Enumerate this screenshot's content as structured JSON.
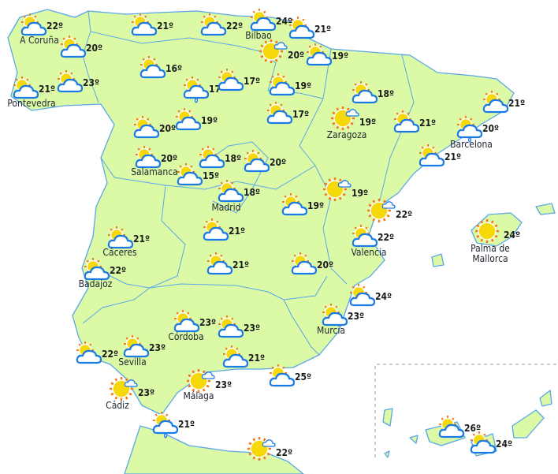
{
  "colors": {
    "land": "#dcfaa6",
    "border": "#5aa6e8",
    "sea": "#ffffff",
    "sun": "#f5d90a",
    "sun_rays": "#f07a1a",
    "cloud_stroke": "#1a7ae6"
  },
  "markers": [
    {
      "temp": "22º",
      "icon": "partly-cloudy-icon",
      "city": "A Coruña"
    },
    {
      "temp": "20º",
      "icon": "partly-cloudy-icon",
      "city": ""
    },
    {
      "temp": "21º",
      "icon": "partly-cloudy-icon",
      "city": "Pontevedra"
    },
    {
      "temp": "23º",
      "icon": "partly-cloudy-icon",
      "city": ""
    },
    {
      "temp": "21º",
      "icon": "partly-cloudy-icon",
      "city": ""
    },
    {
      "temp": "22º",
      "icon": "partly-cloudy-icon",
      "city": ""
    },
    {
      "temp": "24º",
      "icon": "partly-cloudy-icon",
      "city": "Bilbao"
    },
    {
      "temp": "21º",
      "icon": "partly-cloudy-icon",
      "city": ""
    },
    {
      "temp": "20º",
      "icon": "sunny-small-cloud-icon",
      "city": ""
    },
    {
      "temp": "19º",
      "icon": "partly-cloudy-icon",
      "city": ""
    },
    {
      "temp": "16º",
      "icon": "partly-cloudy-icon",
      "city": ""
    },
    {
      "temp": "17º",
      "icon": "cloud-drizzle-icon",
      "city": ""
    },
    {
      "temp": "17º",
      "icon": "partly-cloudy-icon",
      "city": ""
    },
    {
      "temp": "19º",
      "icon": "partly-cloudy-icon",
      "city": ""
    },
    {
      "temp": "17º",
      "icon": "partly-cloudy-icon",
      "city": ""
    },
    {
      "temp": "18º",
      "icon": "partly-cloudy-icon",
      "city": ""
    },
    {
      "temp": "19º",
      "icon": "sunny-small-cloud-icon",
      "city": "Zaragoza"
    },
    {
      "temp": "21º",
      "icon": "partly-cloudy-icon",
      "city": ""
    },
    {
      "temp": "20º",
      "icon": "cloud-drizzle-icon",
      "city": "Barcelona"
    },
    {
      "temp": "21º",
      "icon": "partly-cloudy-icon",
      "city": ""
    },
    {
      "temp": "21º",
      "icon": "partly-cloudy-icon",
      "city": ""
    },
    {
      "temp": "20º",
      "icon": "partly-cloudy-icon",
      "city": ""
    },
    {
      "temp": "19º",
      "icon": "partly-cloudy-icon",
      "city": ""
    },
    {
      "temp": "20º",
      "icon": "partly-cloudy-icon",
      "city": "Salamanca"
    },
    {
      "temp": "15º",
      "icon": "partly-cloudy-icon",
      "city": ""
    },
    {
      "temp": "18º",
      "icon": "partly-cloudy-icon",
      "city": ""
    },
    {
      "temp": "20º",
      "icon": "partly-cloudy-icon",
      "city": ""
    },
    {
      "temp": "18º",
      "icon": "partly-cloudy-icon",
      "city": "Madrid"
    },
    {
      "temp": "19º",
      "icon": "partly-cloudy-icon",
      "city": ""
    },
    {
      "temp": "19º",
      "icon": "sunny-small-cloud-icon",
      "city": ""
    },
    {
      "temp": "22º",
      "icon": "sunny-small-cloud-icon",
      "city": ""
    },
    {
      "temp": "22º",
      "icon": "partly-cloudy-icon",
      "city": "Valencia"
    },
    {
      "temp": "24º",
      "icon": "sunny-icon",
      "city": "Palma de Mallorca"
    },
    {
      "temp": "21º",
      "icon": "partly-cloudy-icon",
      "city": "Cáceres"
    },
    {
      "temp": "22º",
      "icon": "partly-cloudy-icon",
      "city": "Badajoz"
    },
    {
      "temp": "21º",
      "icon": "partly-cloudy-icon",
      "city": ""
    },
    {
      "temp": "21º",
      "icon": "partly-cloudy-icon",
      "city": ""
    },
    {
      "temp": "20º",
      "icon": "partly-cloudy-icon",
      "city": ""
    },
    {
      "temp": "24º",
      "icon": "partly-cloudy-icon",
      "city": ""
    },
    {
      "temp": "23º",
      "icon": "partly-cloudy-icon",
      "city": "Murcia"
    },
    {
      "temp": "23º",
      "icon": "partly-cloudy-icon",
      "city": "Córdoba"
    },
    {
      "temp": "23º",
      "icon": "partly-cloudy-icon",
      "city": ""
    },
    {
      "temp": "22º",
      "icon": "partly-cloudy-icon",
      "city": ""
    },
    {
      "temp": "23º",
      "icon": "partly-cloudy-icon",
      "city": "Sevilla"
    },
    {
      "temp": "21º",
      "icon": "partly-cloudy-icon",
      "city": ""
    },
    {
      "temp": "25º",
      "icon": "partly-cloudy-icon",
      "city": ""
    },
    {
      "temp": "23º",
      "icon": "sunny-small-cloud-icon",
      "city": "Málaga"
    },
    {
      "temp": "23º",
      "icon": "sunny-small-cloud-icon",
      "city": "Cádiz"
    },
    {
      "temp": "21º",
      "icon": "cloud-drizzle-icon",
      "city": ""
    },
    {
      "temp": "22º",
      "icon": "sunny-small-cloud-icon",
      "city": ""
    },
    {
      "temp": "26º",
      "icon": "partly-cloudy-icon",
      "city": ""
    },
    {
      "temp": "24º",
      "icon": "partly-cloudy-icon",
      "city": ""
    }
  ]
}
